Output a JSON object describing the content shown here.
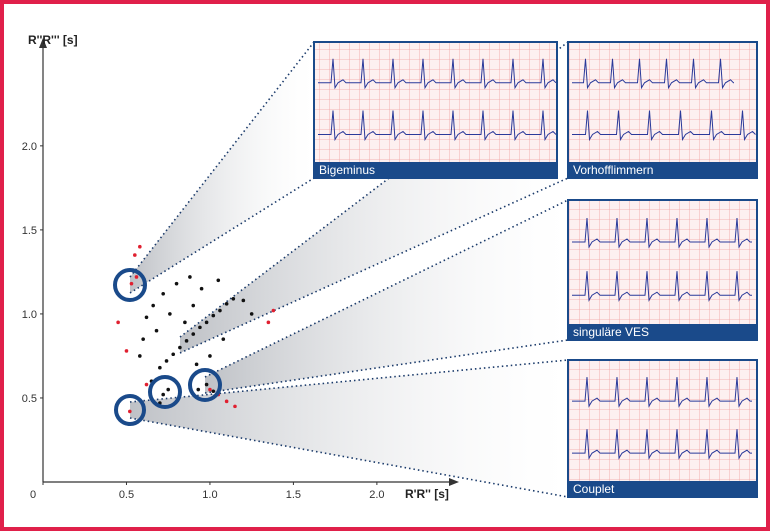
{
  "chart_data": {
    "type": "scatter",
    "x_label": "R'R'' [s]",
    "y_label": "R''R''' [s]",
    "xlim": [
      0,
      2.45
    ],
    "ylim": [
      0,
      2.6
    ],
    "xticks": [
      0,
      0.5,
      {
        "value": 1,
        "label": "1.0"
      },
      1.5,
      {
        "value": 2,
        "label": "2.0"
      }
    ],
    "yticks": [
      0.5,
      {
        "value": 1,
        "label": "1.0"
      },
      1.5,
      {
        "value": 2,
        "label": "2.0"
      }
    ],
    "series": [
      {
        "color": "#111111",
        "x": [
          0.7,
          0.74,
          0.78,
          0.82,
          0.86,
          0.9,
          0.94,
          0.98,
          1.02,
          1.06,
          1.1,
          1.14,
          0.62,
          0.66,
          0.72,
          0.8,
          0.88,
          0.95,
          0.6,
          0.68,
          0.76,
          1.05,
          1.2,
          1.25,
          0.92,
          1.0,
          1.08,
          0.58,
          0.65,
          0.72,
          0.7,
          0.75,
          0.93,
          0.98,
          1.02,
          0.9,
          0.85
        ],
        "values": [
          0.68,
          0.72,
          0.76,
          0.8,
          0.84,
          0.88,
          0.92,
          0.95,
          0.99,
          1.02,
          1.06,
          1.09,
          0.98,
          1.05,
          1.12,
          1.18,
          1.22,
          1.15,
          0.85,
          0.9,
          1.0,
          1.2,
          1.08,
          1.0,
          0.7,
          0.75,
          0.85,
          0.75,
          0.6,
          0.52,
          0.47,
          0.55,
          0.55,
          0.58,
          0.54,
          1.05,
          0.95
        ]
      },
      {
        "color": "#e02030",
        "x": [
          0.55,
          0.58,
          0.53,
          0.56,
          0.52,
          1.0,
          1.05,
          1.1,
          1.35,
          1.38,
          0.45,
          0.5,
          1.15,
          0.62
        ],
        "values": [
          1.35,
          1.4,
          1.18,
          1.22,
          0.42,
          0.55,
          0.52,
          0.48,
          0.95,
          1.02,
          0.95,
          0.78,
          0.45,
          0.58
        ]
      }
    ],
    "annotations": [
      "Bigeminus",
      "Vorhofflimmern",
      "singuläre VES",
      "Couplet"
    ]
  }
}
